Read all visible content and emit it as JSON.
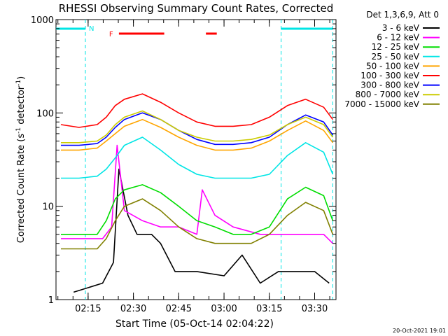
{
  "chart_data": {
    "type": "line",
    "title": "RHESSI Observing Summary Count Rates, Corrected",
    "xlabel": "Start Time (05-Oct-14 02:04:22)",
    "ylabel_main": "Corrected Count Rate (s",
    "ylabel_sup1": "-1",
    "ylabel_mid": " detector",
    "ylabel_sup2": "-1",
    "ylabel_end": ")",
    "yscale": "log",
    "ylim": [
      1,
      1000
    ],
    "xlim": [
      2.0728,
      3.6178
    ],
    "y_ticks": [
      1,
      10,
      100,
      1000
    ],
    "y_tick_labels": [
      "1",
      "10",
      "100",
      "1000"
    ],
    "x_ticks": [
      2.25,
      2.5,
      2.75,
      3.0,
      3.25,
      3.5
    ],
    "x_tick_labels": [
      "02:15",
      "02:30",
      "02:45",
      "03:00",
      "03:15",
      "03:30"
    ],
    "legend_title": "Det 1,3,6,9, Att 0",
    "legend_position": "right, outside",
    "series": [
      {
        "name": "3 - 6 keV",
        "color": "#000000",
        "x": [
          2.17,
          2.33,
          2.39,
          2.42,
          2.47,
          2.52,
          2.6,
          2.65,
          2.73,
          2.8,
          2.85,
          3.0,
          3.1,
          3.2,
          3.3,
          3.4,
          3.5,
          3.58
        ],
        "y": [
          1.2,
          1.5,
          2.5,
          25,
          8,
          5,
          5,
          4,
          2,
          2,
          2,
          1.8,
          3,
          1.5,
          2,
          2,
          2,
          1.5
        ]
      },
      {
        "name": "6 - 12 keV",
        "color": "#ff00ff",
        "x": [
          2.1,
          2.2,
          2.33,
          2.38,
          2.41,
          2.45,
          2.55,
          2.65,
          2.75,
          2.85,
          2.88,
          2.95,
          3.05,
          3.2,
          3.35,
          3.45,
          3.55,
          3.6
        ],
        "y": [
          4.5,
          4.5,
          4.5,
          6,
          45,
          9,
          7,
          6,
          6,
          5,
          15,
          8,
          6,
          5,
          5,
          5,
          5,
          4
        ]
      },
      {
        "name": "12 - 25 keV",
        "color": "#00dd00",
        "x": [
          2.1,
          2.2,
          2.3,
          2.35,
          2.4,
          2.45,
          2.55,
          2.65,
          2.75,
          2.85,
          2.95,
          3.05,
          3.15,
          3.25,
          3.35,
          3.45,
          3.55,
          3.6
        ],
        "y": [
          5,
          5,
          5,
          7,
          12,
          15,
          17,
          14,
          10,
          7,
          6,
          5,
          5,
          6,
          12,
          16,
          13,
          7
        ]
      },
      {
        "name": "25 - 50 keV",
        "color": "#00e5e5",
        "x": [
          2.1,
          2.2,
          2.3,
          2.35,
          2.4,
          2.45,
          2.55,
          2.65,
          2.75,
          2.85,
          2.95,
          3.05,
          3.15,
          3.25,
          3.35,
          3.45,
          3.55,
          3.6
        ],
        "y": [
          20,
          20,
          21,
          25,
          33,
          45,
          55,
          40,
          28,
          22,
          20,
          20,
          20,
          22,
          35,
          48,
          38,
          22
        ]
      },
      {
        "name": "50 - 100 keV",
        "color": "#ffa500",
        "x": [
          2.1,
          2.2,
          2.3,
          2.35,
          2.4,
          2.45,
          2.55,
          2.65,
          2.75,
          2.85,
          2.95,
          3.05,
          3.15,
          3.25,
          3.35,
          3.45,
          3.55,
          3.6
        ],
        "y": [
          40,
          40,
          42,
          50,
          60,
          72,
          85,
          70,
          55,
          45,
          40,
          40,
          42,
          50,
          65,
          82,
          65,
          48
        ]
      },
      {
        "name": "100 - 300 keV",
        "color": "#ff0000",
        "x": [
          2.1,
          2.2,
          2.3,
          2.35,
          2.4,
          2.45,
          2.55,
          2.65,
          2.75,
          2.85,
          2.95,
          3.05,
          3.15,
          3.25,
          3.35,
          3.45,
          3.55,
          3.6
        ],
        "y": [
          75,
          70,
          75,
          90,
          120,
          140,
          160,
          130,
          100,
          80,
          72,
          72,
          75,
          90,
          120,
          140,
          115,
          85
        ]
      },
      {
        "name": "300 - 800 keV",
        "color": "#0000ff",
        "x": [
          2.1,
          2.2,
          2.3,
          2.35,
          2.4,
          2.45,
          2.55,
          2.65,
          2.75,
          2.85,
          2.95,
          3.05,
          3.15,
          3.25,
          3.35,
          3.45,
          3.55,
          3.6
        ],
        "y": [
          45,
          45,
          47,
          55,
          70,
          85,
          100,
          85,
          65,
          52,
          46,
          46,
          48,
          55,
          75,
          95,
          80,
          58
        ]
      },
      {
        "name": "800 - 7000 keV",
        "color": "#cccc00",
        "x": [
          2.1,
          2.2,
          2.3,
          2.35,
          2.4,
          2.45,
          2.55,
          2.65,
          2.75,
          2.85,
          2.95,
          3.05,
          3.15,
          3.25,
          3.35,
          3.45,
          3.55,
          3.6
        ],
        "y": [
          48,
          48,
          50,
          58,
          75,
          90,
          105,
          85,
          65,
          55,
          50,
          50,
          52,
          58,
          75,
          90,
          75,
          55
        ]
      },
      {
        "name": "7000 - 15000 keV",
        "color": "#808000",
        "x": [
          2.1,
          2.2,
          2.3,
          2.35,
          2.4,
          2.45,
          2.55,
          2.65,
          2.75,
          2.85,
          2.95,
          3.05,
          3.15,
          3.25,
          3.35,
          3.45,
          3.55,
          3.6
        ],
        "y": [
          3.5,
          3.5,
          3.5,
          4.5,
          7,
          10,
          12,
          9,
          6,
          4.5,
          4,
          4,
          4,
          5,
          8,
          11,
          9,
          5
        ]
      }
    ],
    "annotations": {
      "night_label": "N",
      "flare_label": "F",
      "night_intervals": [
        [
          2.0728,
          2.235
        ],
        [
          3.315,
          3.6
        ]
      ],
      "flare_intervals": [
        [
          2.42,
          2.67
        ],
        [
          2.9,
          2.96
        ]
      ],
      "night_color": "#00e5e5",
      "flare_color": "#ff0000"
    },
    "footer_date": "20-Oct-2021 19:01"
  }
}
